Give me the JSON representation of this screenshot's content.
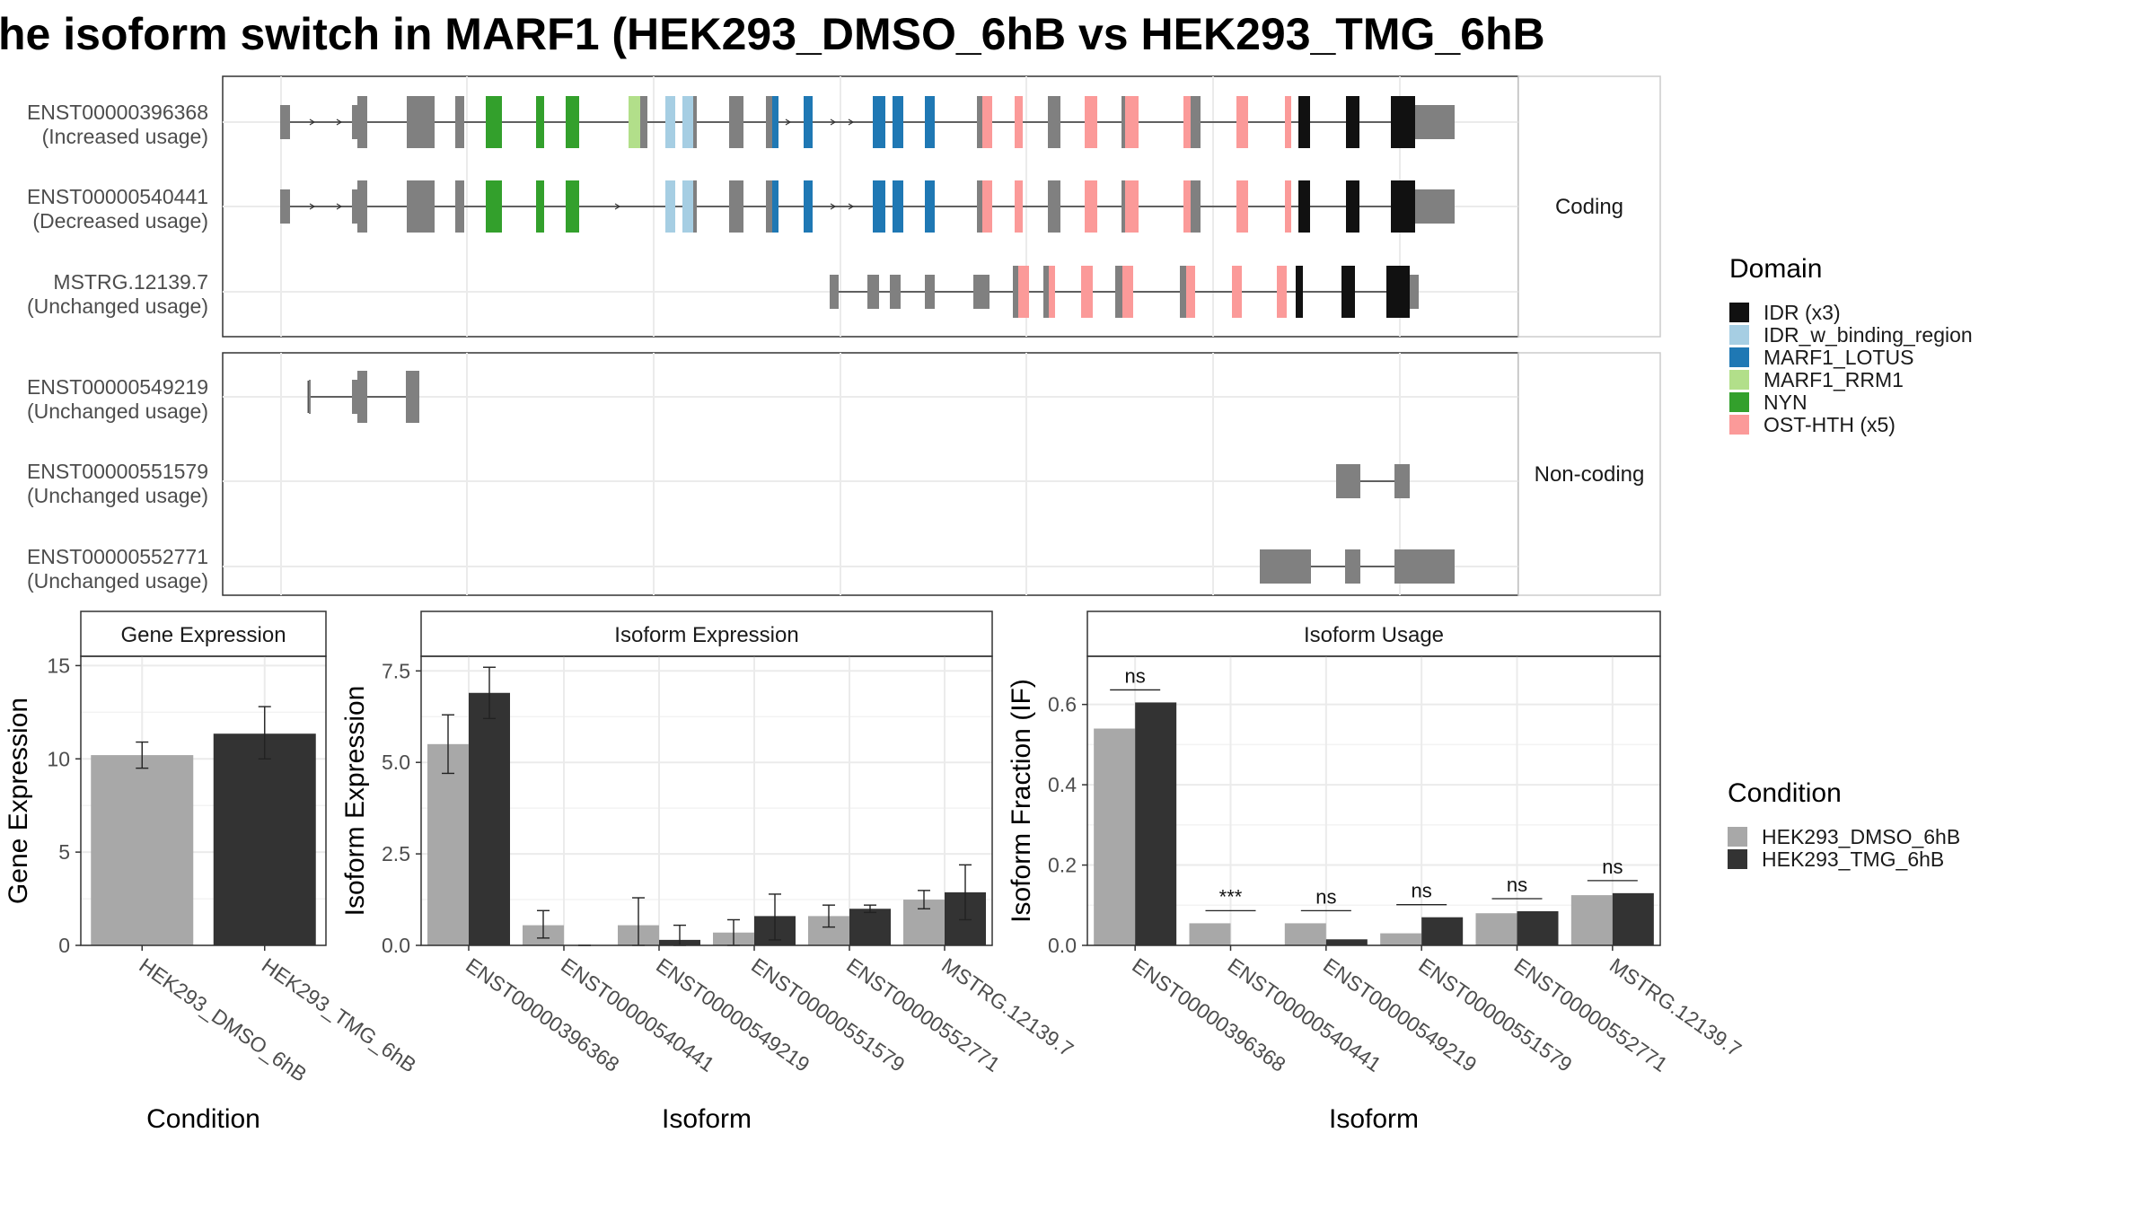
{
  "title": "he isoform switch in MARF1 (HEK293_DMSO_6hB vs HEK293_TMG_6hB",
  "colors": {
    "IDR": "#111111",
    "IDR_w_binding_region": "#a6cee3",
    "MARF1_LOTUS": "#1f78b4",
    "MARF1_RRM1": "#b2df8a",
    "NYN": "#33a02c",
    "OST-HTH": "#fb9a99",
    "exon": "#808080",
    "dmso": "#a8a8a8",
    "tmg": "#333333"
  },
  "structure": {
    "panels": [
      {
        "strip": "Coding",
        "isoforms": [
          {
            "name": "ENST00000396368",
            "usage": "(Increased usage)"
          },
          {
            "name": "ENST00000540441",
            "usage": "(Decreased usage)"
          },
          {
            "name": "MSTRG.12139.7",
            "usage": "(Unchanged usage)"
          }
        ]
      },
      {
        "strip": "Non-coding",
        "isoforms": [
          {
            "name": "ENST00000549219",
            "usage": "(Unchanged usage)"
          },
          {
            "name": "ENST00000551579",
            "usage": "(Unchanged usage)"
          },
          {
            "name": "ENST00000552771",
            "usage": "(Unchanged usage)"
          }
        ]
      }
    ]
  },
  "legend_domain": {
    "title": "Domain",
    "items": [
      {
        "label": "IDR (x3)",
        "color": "#111111"
      },
      {
        "label": "IDR_w_binding_region",
        "color": "#a6cee3"
      },
      {
        "label": "MARF1_LOTUS",
        "color": "#1f78b4"
      },
      {
        "label": "MARF1_RRM1",
        "color": "#b2df8a"
      },
      {
        "label": "NYN",
        "color": "#33a02c"
      },
      {
        "label": "OST-HTH (x5)",
        "color": "#fb9a99"
      }
    ]
  },
  "legend_condition": {
    "title": "Condition",
    "items": [
      {
        "label": "HEK293_DMSO_6hB",
        "color": "#a8a8a8"
      },
      {
        "label": "HEK293_TMG_6hB",
        "color": "#333333"
      }
    ]
  },
  "chart_data": [
    {
      "type": "bar",
      "strip": "Gene Expression",
      "xlabel": "Condition",
      "ylabel": "Gene Expression",
      "ylim": [
        0,
        15.5
      ],
      "yticks": [
        0,
        5,
        10,
        15
      ],
      "ytick_labels": [
        "0",
        "5",
        "10",
        "15"
      ],
      "categories": [
        "HEK293_DMSO_6hB",
        "HEK293_TMG_6hB"
      ],
      "values": [
        10.2,
        11.35
      ],
      "err_low": [
        9.5,
        10.0
      ],
      "err_high": [
        10.9,
        12.8
      ]
    },
    {
      "type": "bar",
      "strip": "Isoform Expression",
      "xlabel": "Isoform",
      "ylabel": "Isoform Expression",
      "ylim": [
        0,
        7.9
      ],
      "yticks": [
        0,
        2.5,
        5,
        7.5
      ],
      "ytick_labels": [
        "0.0",
        "2.5",
        "5.0",
        "7.5"
      ],
      "categories": [
        "ENST00000396368",
        "ENST00000540441",
        "ENST00000549219",
        "ENST00000551579",
        "ENST00000552771",
        "MSTRG.12139.7"
      ],
      "series": [
        {
          "name": "HEK293_DMSO_6hB",
          "values": [
            5.5,
            0.55,
            0.55,
            0.35,
            0.8,
            1.25
          ],
          "err_low": [
            4.7,
            0.2,
            0.0,
            0.0,
            0.5,
            1.0
          ],
          "err_high": [
            6.3,
            0.95,
            1.3,
            0.7,
            1.1,
            1.5
          ]
        },
        {
          "name": "HEK293_TMG_6hB",
          "values": [
            6.9,
            0.0,
            0.15,
            0.8,
            1.0,
            1.45
          ],
          "err_low": [
            6.2,
            0.0,
            0.0,
            0.15,
            0.9,
            0.7
          ],
          "err_high": [
            7.6,
            0.0,
            0.55,
            1.4,
            1.1,
            2.2
          ]
        }
      ]
    },
    {
      "type": "bar",
      "strip": "Isoform Usage",
      "xlabel": "Isoform",
      "ylabel": "Isoform Fraction (IF)",
      "ylim": [
        0,
        0.72
      ],
      "yticks": [
        0,
        0.2,
        0.4,
        0.6
      ],
      "ytick_labels": [
        "0.0",
        "0.2",
        "0.4",
        "0.6"
      ],
      "categories": [
        "ENST00000396368",
        "ENST00000540441",
        "ENST00000549219",
        "ENST00000551579",
        "ENST00000552771",
        "MSTRG.12139.7"
      ],
      "series": [
        {
          "name": "HEK293_DMSO_6hB",
          "values": [
            0.54,
            0.055,
            0.055,
            0.03,
            0.08,
            0.125
          ]
        },
        {
          "name": "HEK293_TMG_6hB",
          "values": [
            0.605,
            0.0,
            0.015,
            0.07,
            0.085,
            0.13
          ]
        }
      ],
      "significance": [
        "ns",
        "***",
        "ns",
        "ns",
        "ns",
        "ns"
      ]
    }
  ]
}
